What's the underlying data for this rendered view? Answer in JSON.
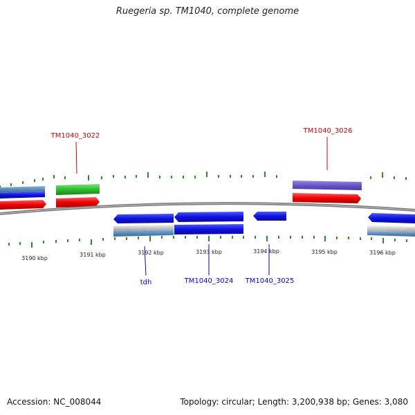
{
  "title": "Ruegeria sp. TM1040, complete genome",
  "footer": {
    "accession": "Accession: NC_008044",
    "summary": "Topology: circular; Length: 3,200,938 bp; Genes: 3,080"
  },
  "colors": {
    "backbone": "#8a8a8a",
    "tick": "#2a8a2a",
    "forward_label": "#cc0000",
    "reverse_label": "#0000cc"
  },
  "scale_labels": [
    "3190 kbp",
    "3191 kbp",
    "3192 kbp",
    "3193 kbp",
    "3194 kbp",
    "3195 kbp",
    "3196 kbp"
  ],
  "gene_labels": {
    "tm1040_3022": "TM1040_3022",
    "tm1040_3026": "TM1040_3026",
    "tdh": "tdh",
    "tm1040_3024": "TM1040_3024",
    "tm1040_3025": "TM1040_3025"
  }
}
